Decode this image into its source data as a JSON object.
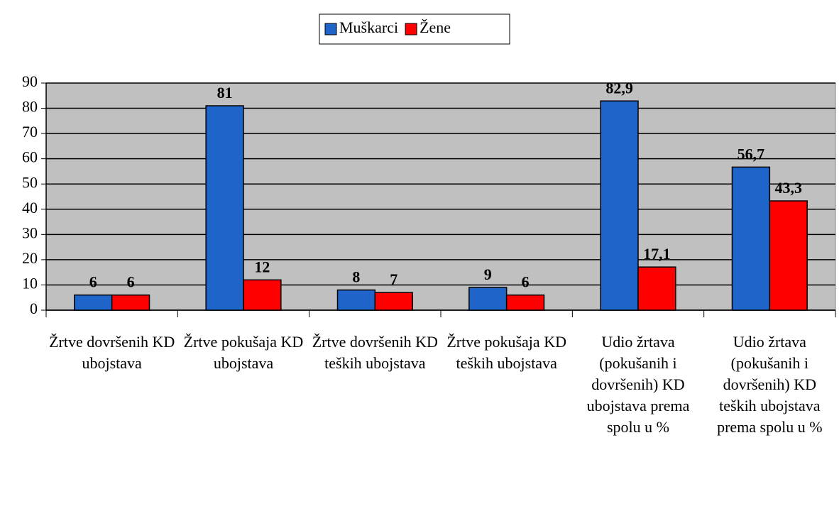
{
  "chart_data": {
    "type": "bar",
    "categories": [
      "Žrtve dovršenih KD ubojstava",
      "Žrtve pokušaja KD ubojstava",
      "Žrtve dovršenih KD teških ubojstava",
      "Žrtve pokušaja KD teških ubojstava",
      "Udio žrtava (pokušanih i dovršenih) KD ubojstava prema spolu u %",
      "Udio žrtava (pokušanih i dovršenih) KD teških ubojstava prema spolu u %"
    ],
    "series": [
      {
        "name": "Muškarci",
        "color": "#1f64c8",
        "values": [
          6,
          81,
          8,
          9,
          82.9,
          56.7
        ],
        "value_labels": [
          "6",
          "81",
          "8",
          "9",
          "82,9",
          "56,7"
        ]
      },
      {
        "name": "Žene",
        "color": "#ff0000",
        "values": [
          6,
          12,
          7,
          6,
          17.1,
          43.3
        ],
        "value_labels": [
          "6",
          "12",
          "7",
          "6",
          "17,1",
          "43,3"
        ]
      }
    ],
    "ylim": [
      0,
      90
    ],
    "yticks": [
      0,
      10,
      20,
      30,
      40,
      50,
      60,
      70,
      80,
      90
    ],
    "grid": true,
    "legend": "top"
  }
}
